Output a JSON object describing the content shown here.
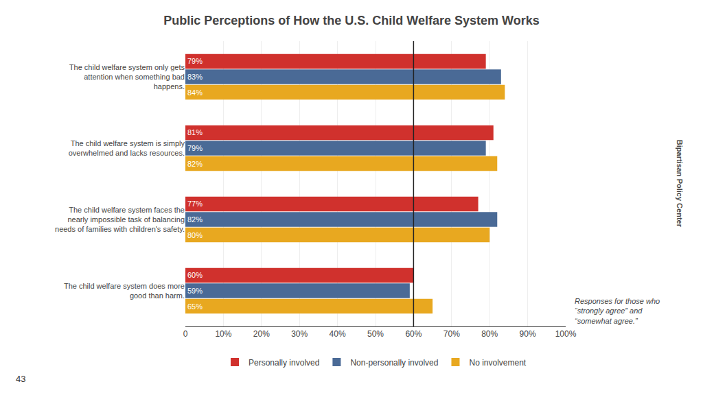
{
  "chart_data": {
    "type": "bar",
    "orientation": "horizontal",
    "title": "Public Perceptions of How the U.S. Child Welfare System Works",
    "categories": [
      "The child welfare system only gets\nattention when something bad\nhappens.",
      "The child welfare system is simply\noverwhelmed and lacks resources.",
      "The child welfare system faces the\nnearly impossible task of balancing\nneeds of families with children's safety.",
      "The child welfare system does more\ngood than harm."
    ],
    "series": [
      {
        "name": "Personally involved",
        "color": "#D0312D",
        "values": [
          79,
          81,
          77,
          60
        ],
        "value_labels": [
          "79%",
          "81%",
          "77%",
          "60%"
        ]
      },
      {
        "name": "Non-personally involved",
        "color": "#4A6A96",
        "values": [
          83,
          79,
          82,
          59
        ],
        "value_labels": [
          "83%",
          "79%",
          "82%",
          "59%"
        ]
      },
      {
        "name": "No involvement",
        "color": "#E8A820",
        "values": [
          84,
          82,
          80,
          65
        ],
        "value_labels": [
          "84%",
          "82%",
          "80%",
          "65%"
        ]
      }
    ],
    "xlim": [
      0,
      100
    ],
    "xticks": [
      0,
      {
        "value": 10,
        "label": "10%"
      },
      {
        "value": 20,
        "label": "20%"
      },
      {
        "value": 30,
        "label": "30%"
      },
      {
        "value": 40,
        "label": "40%"
      },
      {
        "value": 50,
        "label": "50%"
      },
      {
        "value": 60,
        "label": "60%"
      },
      {
        "value": 70,
        "label": "70%"
      },
      {
        "value": 80,
        "label": "80%"
      },
      {
        "value": 90,
        "label": "90%"
      },
      {
        "value": 100,
        "label": "100%"
      }
    ],
    "grid": true,
    "data_labels": true,
    "legend": "bottom",
    "reference_line": 60,
    "annotations": [
      "Responses for those who\n“strongly agree” and\n“somewhat agree.”",
      "43",
      "Bipartisan Policy Center"
    ]
  }
}
